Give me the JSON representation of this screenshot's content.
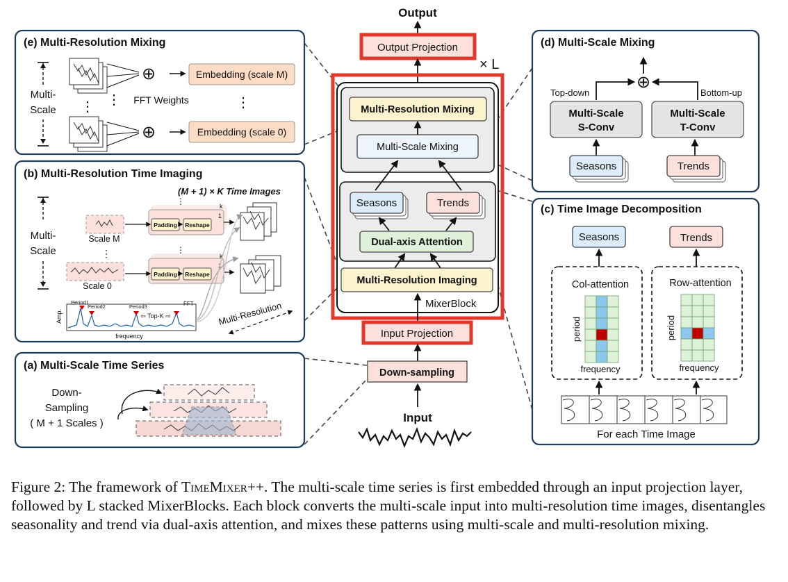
{
  "center": {
    "output": "Output",
    "output_projection": "Output Projection",
    "times_l": "× L",
    "multi_resolution_mixing": "Multi-Resolution Mixing",
    "multi_scale_mixing": "Multi-Scale Mixing",
    "seasons": "Seasons",
    "trends": "Trends",
    "dual_axis_attention": "Dual-axis Attention",
    "multi_resolution_imaging": "Multi-Resolution Imaging",
    "mixer_block": "MixerBlock",
    "input_projection": "Input Projection",
    "down_sampling": "Down-sampling",
    "input": "Input"
  },
  "panel_e": {
    "title": "(e) Multi-Resolution Mixing",
    "multi": "Multi-",
    "scale": "Scale",
    "fft_weights": "FFT Weights",
    "embedding_m": "Embedding (scale M)",
    "embedding_0": "Embedding (scale 0)",
    "oplus": "⊕",
    "vdots": "⋮"
  },
  "panel_b": {
    "title": "(b) Multi-Resolution Time Imaging",
    "time_images": "(M + 1) × K  Time Images",
    "multi": "Multi-",
    "scale": "Scale",
    "scale_m": "Scale M",
    "scale_0": "Scale 0",
    "padding": "Padding",
    "reshape": "Reshape",
    "k": "k",
    "one": "1",
    "period1": "Period1",
    "period2": "Period2",
    "period3": "Period3",
    "fft": "FFT",
    "topk": "⇦ Top-K ⇨",
    "amp": "Amp.",
    "frequency": "frequency",
    "multi_resolution": "Multi-Resolution",
    "vdots": "⋮"
  },
  "panel_a": {
    "title": "(a) Multi-Scale Time Series",
    "down": "Down-",
    "sampling": "Sampling",
    "scales": "( M + 1 Scales )"
  },
  "panel_d": {
    "title": "(d) Multi-Scale Mixing",
    "top_down": "Top-down",
    "bottom_up": "Bottom-up",
    "s_conv_1": "Multi-Scale",
    "s_conv_2": "S-Conv",
    "t_conv_1": "Multi-Scale",
    "t_conv_2": "T-Conv",
    "seasons": "Seasons",
    "trends": "Trends",
    "oplus": "⊕"
  },
  "panel_c": {
    "title": "(c) Time Image Decomposition",
    "seasons": "Seasons",
    "trends": "Trends",
    "col_attention": "Col-attention",
    "row_attention": "Row-attention",
    "period": "period",
    "frequency": "frequency",
    "for_each": "For each Time Image"
  },
  "caption": {
    "label": "Figure 2: The framework of ",
    "name": "TimeMixer++",
    "rest": ". The multi-scale time series is first embedded through an input projection layer, followed by L stacked MixerBlocks. Each block converts the multi-scale input into multi-resolution time images, disentangles seasonality and trend via dual-axis attention, and mixes these patterns using multi-scale and multi-resolution mixing."
  },
  "colors": {
    "panel_border": "#1f3a5a",
    "red_border": "#e0392b",
    "yellow_fill": "#fdf3cf",
    "blue_fill": "#dcecfb",
    "pink_fill": "#fbe0dc",
    "orange_fill": "#fcdcc4",
    "green_fill": "#dff1d9",
    "gray_fill": "#e4e4e4"
  }
}
